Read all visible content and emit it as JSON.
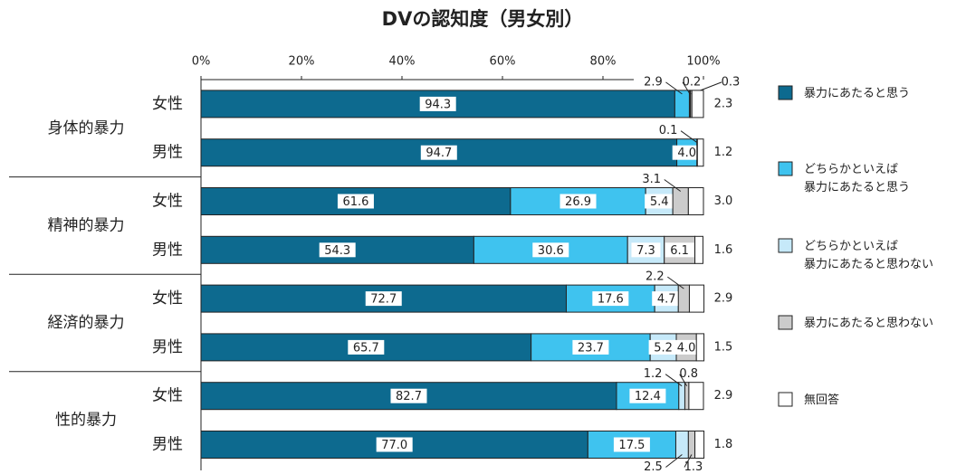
{
  "chart_data": {
    "type": "stacked-bar-horizontal",
    "title": "DVの認知度（男女別）",
    "groups": [
      "身体的暴力",
      "精神的暴力",
      "経済的暴力",
      "性的暴力"
    ],
    "categories": [
      "女性",
      "男性",
      "女性",
      "男性",
      "女性",
      "男性",
      "女性",
      "男性"
    ],
    "xlim": [
      0,
      100
    ],
    "xticks": [
      {
        "value": 0,
        "label": "0%"
      },
      {
        "value": 20,
        "label": "20%"
      },
      {
        "value": 40,
        "label": "40%"
      },
      {
        "value": 60,
        "label": "60%"
      },
      {
        "value": 80,
        "label": "80%"
      },
      {
        "value": 100,
        "label": "100%"
      }
    ],
    "legend": "right",
    "series": [
      {
        "name": "暴力にあたると思う",
        "color": "#0d6a8f",
        "values": [
          94.3,
          94.7,
          61.6,
          54.3,
          72.7,
          65.7,
          82.7,
          77.0
        ],
        "value_labels": [
          "94.3",
          "94.7",
          "61.6",
          "54.3",
          "72.7",
          "65.7",
          "82.7",
          "77.0"
        ]
      },
      {
        "name": "どちらかといえば\n暴力にあたると思う",
        "color": "#3fc3ef",
        "values": [
          2.9,
          4.0,
          26.9,
          30.6,
          17.6,
          23.7,
          12.4,
          17.5
        ],
        "value_labels": [
          "2.9",
          "4.0",
          "26.9",
          "30.6",
          "17.6",
          "23.7",
          "12.4",
          "17.5"
        ]
      },
      {
        "name": "どちらかといえば\n暴力にあたると思わない",
        "color": "#c6e9f9",
        "values": [
          0.2,
          0.1,
          5.4,
          7.3,
          4.7,
          5.2,
          1.2,
          2.5
        ],
        "value_labels": [
          "0.2",
          "0.1",
          "5.4",
          "7.3",
          "4.7",
          "5.2",
          "1.2",
          "2.5"
        ]
      },
      {
        "name": "暴力にあたると思わない",
        "color": "#cccccc",
        "values": [
          0.3,
          null,
          3.1,
          6.1,
          2.2,
          4.0,
          0.8,
          1.3
        ],
        "value_labels": [
          "0.3",
          null,
          "3.1",
          "6.1",
          "2.2",
          "4.0",
          "0.8",
          "1.3"
        ]
      },
      {
        "name": "無回答",
        "color": "#ffffff",
        "values": [
          2.3,
          1.2,
          3.0,
          1.6,
          2.9,
          1.5,
          2.9,
          1.8
        ],
        "value_labels": [
          "2.3",
          "1.2",
          "3.0",
          "1.6",
          "2.9",
          "1.5",
          "2.9",
          "1.8"
        ]
      }
    ]
  }
}
